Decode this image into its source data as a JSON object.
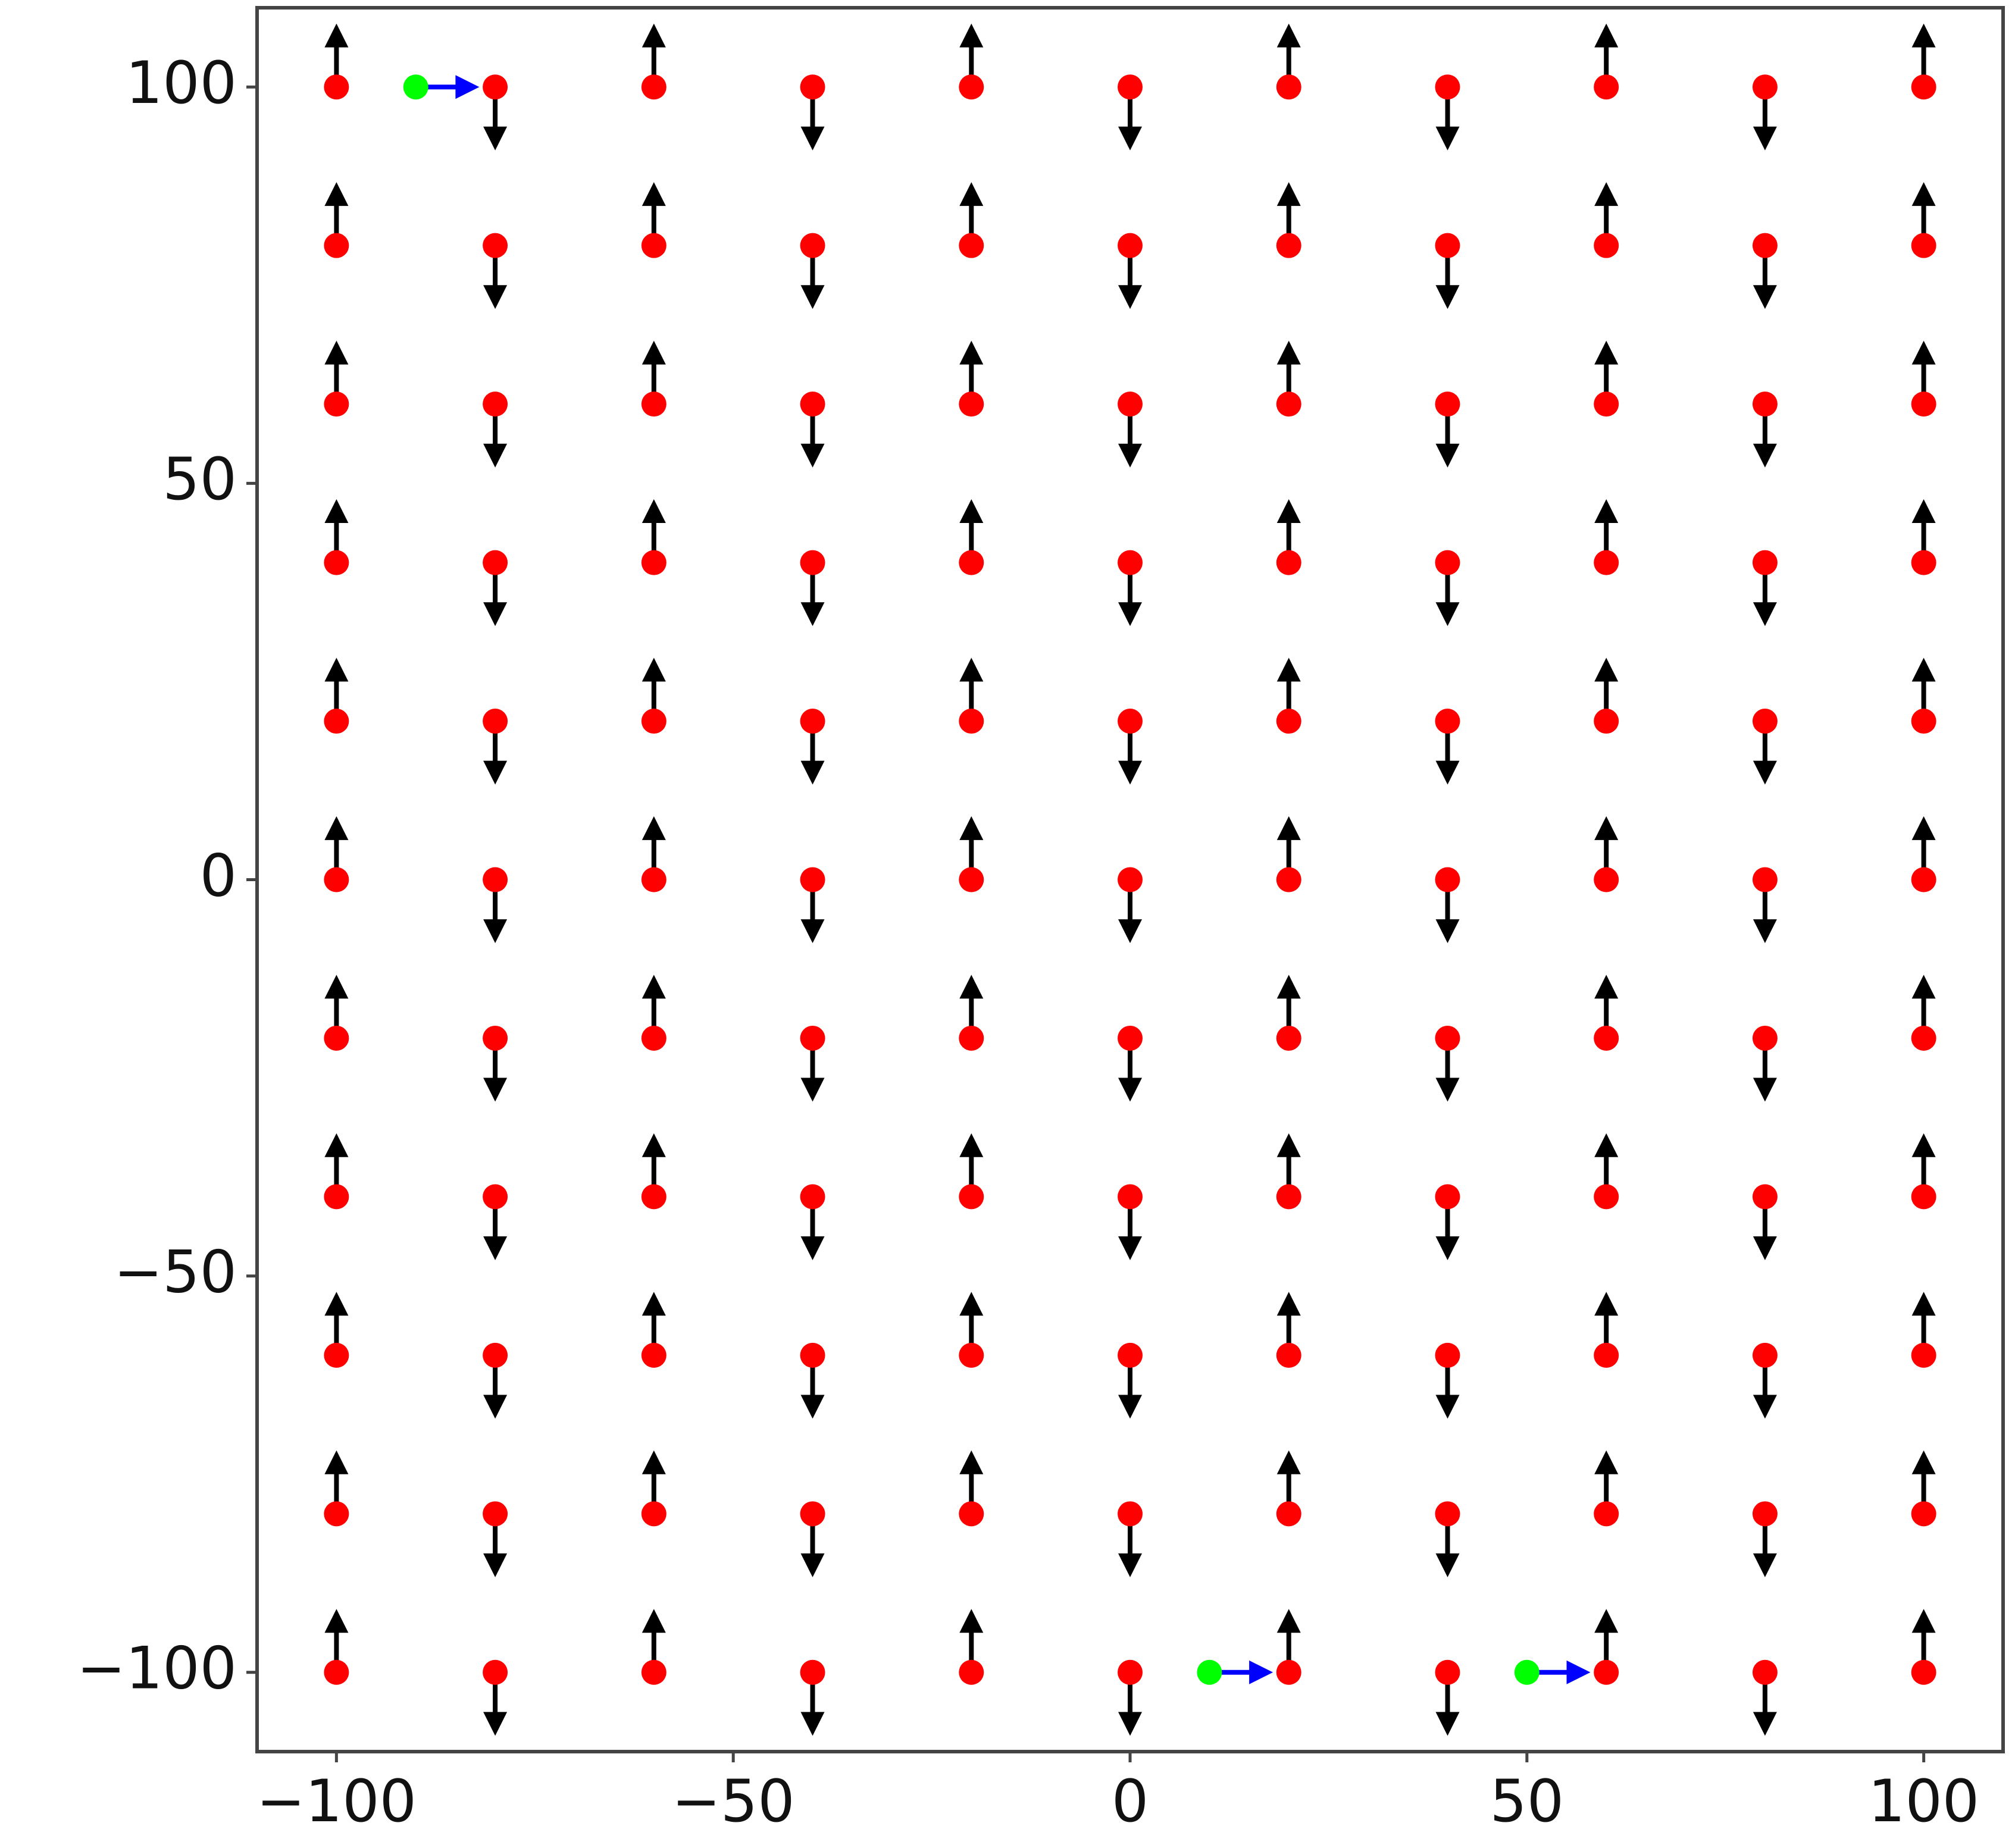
{
  "chart_data": {
    "type": "quiver",
    "xlim": [
      -110,
      110
    ],
    "ylim": [
      -110,
      110
    ],
    "xticks": [
      {
        "value": -100,
        "label": "−100"
      },
      {
        "value": -50,
        "label": "−50"
      },
      0,
      50,
      100
    ],
    "yticks": [
      {
        "value": -100,
        "label": "−100"
      },
      {
        "value": -50,
        "label": "−50"
      },
      0,
      50,
      100
    ],
    "layers": [
      {
        "kind": "arrows",
        "color": "#000000",
        "x": [
          -100,
          -100,
          -100,
          -100,
          -100,
          -100,
          -100,
          -100,
          -100,
          -100,
          -100,
          -80,
          -80,
          -80,
          -80,
          -80,
          -80,
          -80,
          -80,
          -80,
          -80,
          -80,
          -60,
          -60,
          -60,
          -60,
          -60,
          -60,
          -60,
          -60,
          -60,
          -60,
          -60,
          -40,
          -40,
          -40,
          -40,
          -40,
          -40,
          -40,
          -40,
          -40,
          -40,
          -40,
          -20,
          -20,
          -20,
          -20,
          -20,
          -20,
          -20,
          -20,
          -20,
          -20,
          -20,
          0,
          0,
          0,
          0,
          0,
          0,
          0,
          0,
          0,
          0,
          0,
          20,
          20,
          20,
          20,
          20,
          20,
          20,
          20,
          20,
          20,
          20,
          40,
          40,
          40,
          40,
          40,
          40,
          40,
          40,
          40,
          40,
          40,
          60,
          60,
          60,
          60,
          60,
          60,
          60,
          60,
          60,
          60,
          60,
          80,
          80,
          80,
          80,
          80,
          80,
          80,
          80,
          80,
          80,
          80,
          100,
          100,
          100,
          100,
          100,
          100,
          100,
          100,
          100,
          100,
          100
        ],
        "y": [
          -100,
          -80,
          -60,
          -40,
          -20,
          0,
          20,
          40,
          60,
          80,
          100,
          -100,
          -80,
          -60,
          -40,
          -20,
          0,
          20,
          40,
          60,
          80,
          100,
          -100,
          -80,
          -60,
          -40,
          -20,
          0,
          20,
          40,
          60,
          80,
          100,
          -100,
          -80,
          -60,
          -40,
          -20,
          0,
          20,
          40,
          60,
          80,
          100,
          -100,
          -80,
          -60,
          -40,
          -20,
          0,
          20,
          40,
          60,
          80,
          100,
          -100,
          -80,
          -60,
          -40,
          -20,
          0,
          20,
          40,
          60,
          80,
          100,
          -100,
          -80,
          -60,
          -40,
          -20,
          0,
          20,
          40,
          60,
          80,
          100,
          -100,
          -80,
          -60,
          -40,
          -20,
          0,
          20,
          40,
          60,
          80,
          100,
          -100,
          -80,
          -60,
          -40,
          -20,
          0,
          20,
          40,
          60,
          80,
          100,
          -100,
          -80,
          -60,
          -40,
          -20,
          0,
          20,
          40,
          60,
          80,
          100,
          -100,
          -80,
          -60,
          -40,
          -20,
          0,
          20,
          40,
          60,
          80,
          100
        ],
        "u": [
          0,
          0,
          0,
          0,
          0,
          0,
          0,
          0,
          0,
          0,
          0,
          0,
          0,
          0,
          0,
          0,
          0,
          0,
          0,
          0,
          0,
          0,
          0,
          0,
          0,
          0,
          0,
          0,
          0,
          0,
          0,
          0,
          0,
          0,
          0,
          0,
          0,
          0,
          0,
          0,
          0,
          0,
          0,
          0,
          0,
          0,
          0,
          0,
          0,
          0,
          0,
          0,
          0,
          0,
          0,
          0,
          0,
          0,
          0,
          0,
          0,
          0,
          0,
          0,
          0,
          0,
          0,
          0,
          0,
          0,
          0,
          0,
          0,
          0,
          0,
          0,
          0,
          0,
          0,
          0,
          0,
          0,
          0,
          0,
          0,
          0,
          0,
          0,
          0,
          0,
          0,
          0,
          0,
          0,
          0,
          0,
          0,
          0,
          0,
          0,
          0,
          0,
          0,
          0,
          0,
          0,
          0,
          0,
          0,
          0,
          0,
          0,
          0,
          0,
          0,
          0,
          0,
          0,
          0,
          0,
          0
        ],
        "v": [
          8,
          8,
          8,
          8,
          8,
          8,
          8,
          8,
          8,
          8,
          8,
          -8,
          -8,
          -8,
          -8,
          -8,
          -8,
          -8,
          -8,
          -8,
          -8,
          -8,
          8,
          8,
          8,
          8,
          8,
          8,
          8,
          8,
          8,
          8,
          8,
          -8,
          -8,
          -8,
          -8,
          -8,
          -8,
          -8,
          -8,
          -8,
          -8,
          -8,
          8,
          8,
          8,
          8,
          8,
          8,
          8,
          8,
          8,
          8,
          8,
          -8,
          -8,
          -8,
          -8,
          -8,
          -8,
          -8,
          -8,
          -8,
          -8,
          -8,
          8,
          8,
          8,
          8,
          8,
          8,
          8,
          8,
          8,
          8,
          8,
          -8,
          -8,
          -8,
          -8,
          -8,
          -8,
          -8,
          -8,
          -8,
          -8,
          -8,
          8,
          8,
          8,
          8,
          8,
          8,
          8,
          8,
          8,
          8,
          8,
          -8,
          -8,
          -8,
          -8,
          -8,
          -8,
          -8,
          -8,
          -8,
          -8,
          -8,
          8,
          8,
          8,
          8,
          8,
          8,
          8,
          8,
          8,
          8,
          8
        ]
      },
      {
        "kind": "points",
        "color": "#ff0000",
        "x": [
          -100,
          -100,
          -100,
          -100,
          -100,
          -100,
          -100,
          -100,
          -100,
          -100,
          -100,
          -80,
          -80,
          -80,
          -80,
          -80,
          -80,
          -80,
          -80,
          -80,
          -80,
          -80,
          -60,
          -60,
          -60,
          -60,
          -60,
          -60,
          -60,
          -60,
          -60,
          -60,
          -60,
          -40,
          -40,
          -40,
          -40,
          -40,
          -40,
          -40,
          -40,
          -40,
          -40,
          -40,
          -20,
          -20,
          -20,
          -20,
          -20,
          -20,
          -20,
          -20,
          -20,
          -20,
          -20,
          0,
          0,
          0,
          0,
          0,
          0,
          0,
          0,
          0,
          0,
          0,
          20,
          20,
          20,
          20,
          20,
          20,
          20,
          20,
          20,
          20,
          20,
          40,
          40,
          40,
          40,
          40,
          40,
          40,
          40,
          40,
          40,
          40,
          60,
          60,
          60,
          60,
          60,
          60,
          60,
          60,
          60,
          60,
          60,
          80,
          80,
          80,
          80,
          80,
          80,
          80,
          80,
          80,
          80,
          80,
          100,
          100,
          100,
          100,
          100,
          100,
          100,
          100,
          100,
          100,
          100
        ],
        "y": [
          -100,
          -80,
          -60,
          -40,
          -20,
          0,
          20,
          40,
          60,
          80,
          100,
          -100,
          -80,
          -60,
          -40,
          -20,
          0,
          20,
          40,
          60,
          80,
          100,
          -100,
          -80,
          -60,
          -40,
          -20,
          0,
          20,
          40,
          60,
          80,
          100,
          -100,
          -80,
          -60,
          -40,
          -20,
          0,
          20,
          40,
          60,
          80,
          100,
          -100,
          -80,
          -60,
          -40,
          -20,
          0,
          20,
          40,
          60,
          80,
          100,
          -100,
          -80,
          -60,
          -40,
          -20,
          0,
          20,
          40,
          60,
          80,
          100,
          -100,
          -80,
          -60,
          -40,
          -20,
          0,
          20,
          40,
          60,
          80,
          100,
          -100,
          -80,
          -60,
          -40,
          -20,
          0,
          20,
          40,
          60,
          80,
          100,
          -100,
          -80,
          -60,
          -40,
          -20,
          0,
          20,
          40,
          60,
          80,
          100,
          -100,
          -80,
          -60,
          -40,
          -20,
          0,
          20,
          40,
          60,
          80,
          100,
          -100,
          -80,
          -60,
          -40,
          -20,
          0,
          20,
          40,
          60,
          80,
          100
        ]
      },
      {
        "kind": "arrows",
        "color": "#0000ff",
        "x": [
          -90,
          10,
          50
        ],
        "y": [
          100,
          -100,
          -100
        ],
        "u": [
          8,
          8,
          8
        ],
        "v": [
          0,
          0,
          0
        ]
      },
      {
        "kind": "points",
        "color": "#00ff00",
        "x": [
          -90,
          10,
          50
        ],
        "y": [
          100,
          -100,
          -100
        ]
      }
    ]
  }
}
